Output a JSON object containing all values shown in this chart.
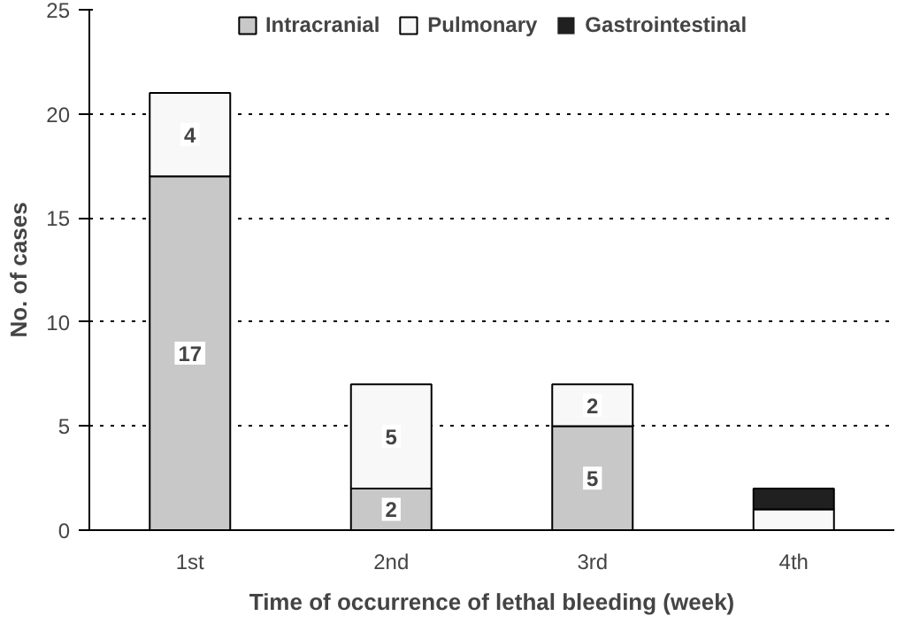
{
  "chart_data": {
    "type": "bar",
    "stacked": true,
    "xlabel": "Time of occurrence of lethal bleeding (week)",
    "ylabel": "No. of cases",
    "categories": [
      "1st",
      "2nd",
      "3rd",
      "4th"
    ],
    "series": [
      {
        "name": "Intracranial",
        "color": "#c8c8c8",
        "values": [
          17,
          2,
          5,
          0
        ],
        "value_labels": [
          "17",
          "2",
          "5",
          null
        ]
      },
      {
        "name": "Pulmonary",
        "color": "#f8f8f8",
        "values": [
          4,
          5,
          2,
          1
        ],
        "value_labels": [
          "4",
          "5",
          "2",
          null
        ]
      },
      {
        "name": "Gastrointestinal",
        "color": "#202020",
        "values": [
          0,
          0,
          0,
          1
        ],
        "value_labels": [
          null,
          null,
          null,
          null
        ]
      }
    ],
    "ylim": [
      0,
      25
    ],
    "yticks": [
      0,
      5,
      10,
      15,
      20,
      25
    ],
    "grid": "y",
    "legend": "top"
  }
}
